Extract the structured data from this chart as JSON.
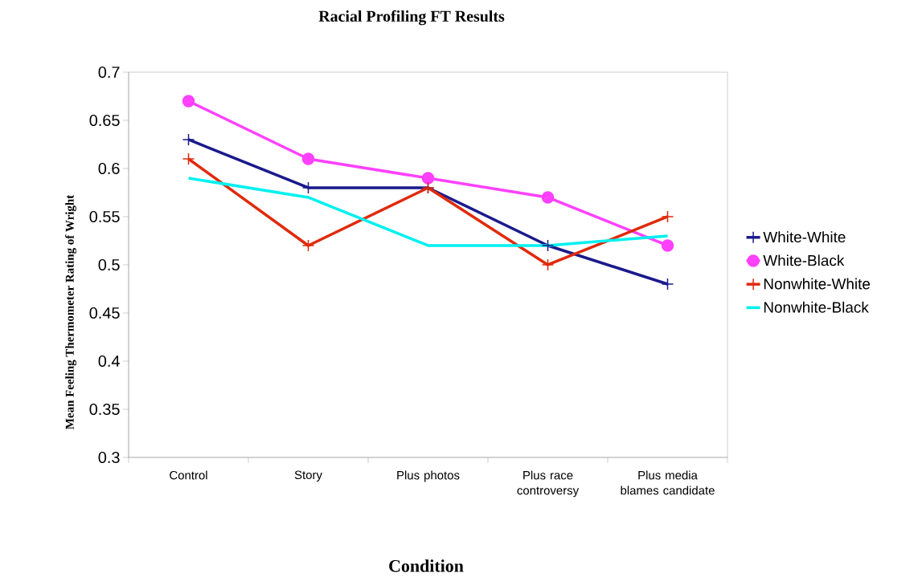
{
  "chart_data": {
    "type": "line",
    "title": "Racial Profiling FT Results",
    "xlabel": "Condition",
    "ylabel": "Mean Feeling Thermometer Rating of Wright",
    "categories": [
      "Control",
      "Story",
      "Plus photos",
      "Plus race controversy",
      "Plus media blames candidate"
    ],
    "series": [
      {
        "name": "White-White",
        "color": "#1a1a8c",
        "marker": "cross",
        "values": [
          0.63,
          0.58,
          0.58,
          0.52,
          0.48
        ]
      },
      {
        "name": "White-Black",
        "color": "#ff40ff",
        "marker": "circle",
        "values": [
          0.67,
          0.61,
          0.59,
          0.57,
          0.52
        ]
      },
      {
        "name": "Nonwhite-White",
        "color": "#e02a0a",
        "marker": "cross",
        "values": [
          0.61,
          0.52,
          0.58,
          0.5,
          0.55
        ]
      },
      {
        "name": "Nonwhite-Black",
        "color": "#00f0f0",
        "marker": "none",
        "values": [
          0.59,
          0.57,
          0.52,
          0.52,
          0.53
        ]
      }
    ],
    "ylim": [
      0.3,
      0.7
    ],
    "yticks": [
      0.3,
      0.35,
      0.4,
      0.45,
      0.5,
      0.55,
      0.6,
      0.65,
      0.7
    ],
    "grid": false,
    "legend": "right"
  }
}
